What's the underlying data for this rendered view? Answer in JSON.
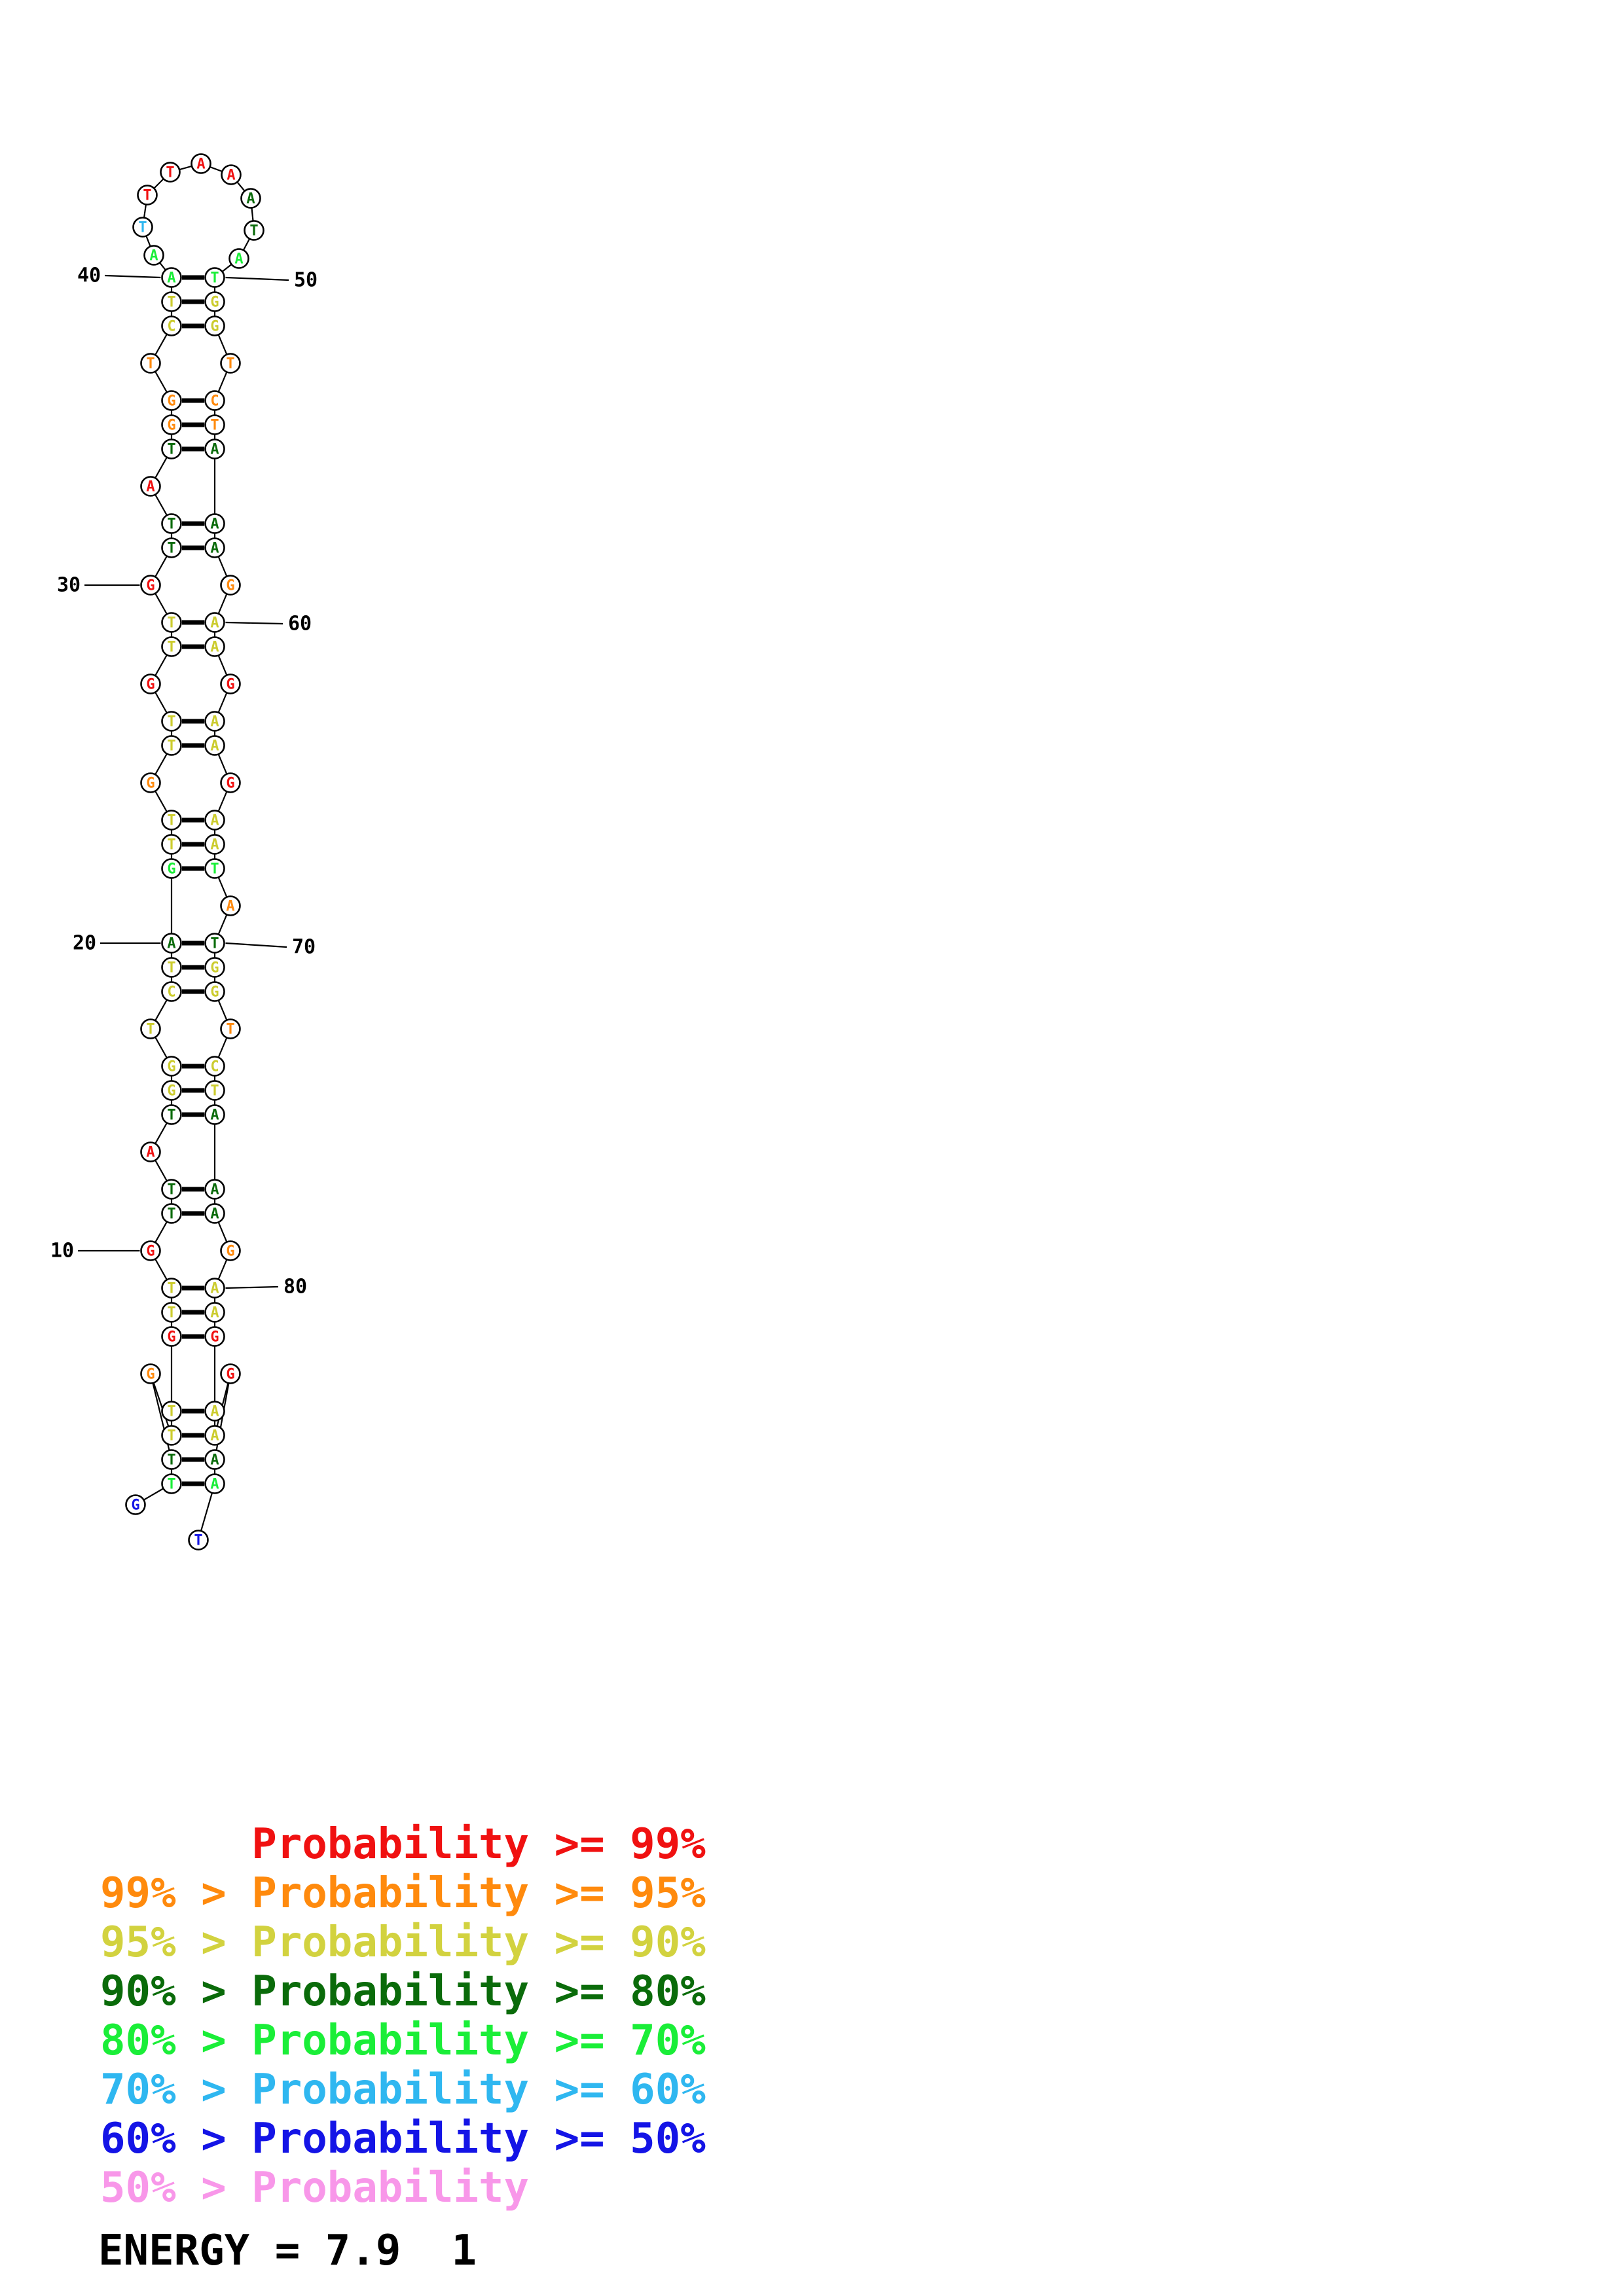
{
  "structure": {
    "palette": {
      "p99": "#F01111",
      "p95": "#FF8A0D",
      "p90": "#CCCC2E",
      "p80": "#0A6B0A",
      "p70": "#1AEE38",
      "p60": "#2FB7F0",
      "p50": "#1414E6"
    },
    "residues": [
      {
        "n": 1,
        "b": "G",
        "p": "p50"
      },
      {
        "n": 2,
        "b": "T",
        "p": "p70"
      },
      {
        "n": 3,
        "b": "T",
        "p": "p80"
      },
      {
        "n": 4,
        "b": "G",
        "p": "p95"
      },
      {
        "n": 5,
        "b": "T",
        "p": "p90"
      },
      {
        "n": 6,
        "b": "T",
        "p": "p90"
      },
      {
        "n": 7,
        "b": "G",
        "p": "p99"
      },
      {
        "n": 8,
        "b": "T",
        "p": "p90"
      },
      {
        "n": 9,
        "b": "T",
        "p": "p90"
      },
      {
        "n": 10,
        "b": "G",
        "p": "p99"
      },
      {
        "n": 11,
        "b": "T",
        "p": "p80"
      },
      {
        "n": 12,
        "b": "T",
        "p": "p80"
      },
      {
        "n": 13,
        "b": "A",
        "p": "p99"
      },
      {
        "n": 14,
        "b": "T",
        "p": "p80"
      },
      {
        "n": 15,
        "b": "G",
        "p": "p90"
      },
      {
        "n": 16,
        "b": "G",
        "p": "p90"
      },
      {
        "n": 17,
        "b": "T",
        "p": "p90"
      },
      {
        "n": 18,
        "b": "C",
        "p": "p90"
      },
      {
        "n": 19,
        "b": "T",
        "p": "p90"
      },
      {
        "n": 20,
        "b": "A",
        "p": "p80"
      },
      {
        "n": 21,
        "b": "G",
        "p": "p70"
      },
      {
        "n": 22,
        "b": "T",
        "p": "p90"
      },
      {
        "n": 23,
        "b": "T",
        "p": "p90"
      },
      {
        "n": 24,
        "b": "G",
        "p": "p95"
      },
      {
        "n": 25,
        "b": "T",
        "p": "p90"
      },
      {
        "n": 26,
        "b": "T",
        "p": "p90"
      },
      {
        "n": 27,
        "b": "G",
        "p": "p99"
      },
      {
        "n": 28,
        "b": "T",
        "p": "p90"
      },
      {
        "n": 29,
        "b": "T",
        "p": "p90"
      },
      {
        "n": 30,
        "b": "G",
        "p": "p99"
      },
      {
        "n": 31,
        "b": "T",
        "p": "p80"
      },
      {
        "n": 32,
        "b": "T",
        "p": "p80"
      },
      {
        "n": 33,
        "b": "A",
        "p": "p99"
      },
      {
        "n": 34,
        "b": "T",
        "p": "p80"
      },
      {
        "n": 35,
        "b": "G",
        "p": "p95"
      },
      {
        "n": 36,
        "b": "G",
        "p": "p95"
      },
      {
        "n": 37,
        "b": "T",
        "p": "p95"
      },
      {
        "n": 38,
        "b": "C",
        "p": "p90"
      },
      {
        "n": 39,
        "b": "T",
        "p": "p90"
      },
      {
        "n": 40,
        "b": "A",
        "p": "p70"
      },
      {
        "n": 41,
        "b": "A",
        "p": "p70"
      },
      {
        "n": 42,
        "b": "T",
        "p": "p60"
      },
      {
        "n": 43,
        "b": "T",
        "p": "p99"
      },
      {
        "n": 44,
        "b": "T",
        "p": "p99"
      },
      {
        "n": 45,
        "b": "A",
        "p": "p99"
      },
      {
        "n": 46,
        "b": "A",
        "p": "p99"
      },
      {
        "n": 47,
        "b": "A",
        "p": "p80"
      },
      {
        "n": 48,
        "b": "T",
        "p": "p80"
      },
      {
        "n": 49,
        "b": "A",
        "p": "p70"
      },
      {
        "n": 50,
        "b": "T",
        "p": "p70"
      },
      {
        "n": 51,
        "b": "G",
        "p": "p90"
      },
      {
        "n": 52,
        "b": "G",
        "p": "p90"
      },
      {
        "n": 53,
        "b": "T",
        "p": "p95"
      },
      {
        "n": 54,
        "b": "C",
        "p": "p95"
      },
      {
        "n": 55,
        "b": "T",
        "p": "p95"
      },
      {
        "n": 56,
        "b": "A",
        "p": "p80"
      },
      {
        "n": 57,
        "b": "A",
        "p": "p80"
      },
      {
        "n": 58,
        "b": "A",
        "p": "p80"
      },
      {
        "n": 59,
        "b": "G",
        "p": "p95"
      },
      {
        "n": 60,
        "b": "A",
        "p": "p90"
      },
      {
        "n": 61,
        "b": "A",
        "p": "p90"
      },
      {
        "n": 62,
        "b": "G",
        "p": "p99"
      },
      {
        "n": 63,
        "b": "A",
        "p": "p90"
      },
      {
        "n": 64,
        "b": "A",
        "p": "p90"
      },
      {
        "n": 65,
        "b": "G",
        "p": "p99"
      },
      {
        "n": 66,
        "b": "A",
        "p": "p90"
      },
      {
        "n": 67,
        "b": "A",
        "p": "p90"
      },
      {
        "n": 68,
        "b": "T",
        "p": "p70"
      },
      {
        "n": 69,
        "b": "A",
        "p": "p95"
      },
      {
        "n": 70,
        "b": "T",
        "p": "p80"
      },
      {
        "n": 71,
        "b": "G",
        "p": "p90"
      },
      {
        "n": 72,
        "b": "G",
        "p": "p90"
      },
      {
        "n": 73,
        "b": "T",
        "p": "p95"
      },
      {
        "n": 74,
        "b": "C",
        "p": "p90"
      },
      {
        "n": 75,
        "b": "T",
        "p": "p90"
      },
      {
        "n": 76,
        "b": "A",
        "p": "p80"
      },
      {
        "n": 77,
        "b": "A",
        "p": "p80"
      },
      {
        "n": 78,
        "b": "A",
        "p": "p80"
      },
      {
        "n": 79,
        "b": "G",
        "p": "p95"
      },
      {
        "n": 80,
        "b": "A",
        "p": "p90"
      },
      {
        "n": 81,
        "b": "A",
        "p": "p90"
      },
      {
        "n": 82,
        "b": "G",
        "p": "p99"
      },
      {
        "n": 83,
        "b": "A",
        "p": "p90"
      },
      {
        "n": 84,
        "b": "A",
        "p": "p90"
      },
      {
        "n": 85,
        "b": "G",
        "p": "p99"
      },
      {
        "n": 86,
        "b": "A",
        "p": "p80"
      },
      {
        "n": 87,
        "b": "A",
        "p": "p70"
      },
      {
        "n": 88,
        "b": "T",
        "p": "p50"
      }
    ],
    "rows": [
      {
        "t": "p",
        "l": 40,
        "r": 50,
        "lab_l": "40",
        "lab_r": "50"
      },
      {
        "t": "p",
        "l": 39,
        "r": 51
      },
      {
        "t": "p",
        "l": 38,
        "r": 52
      },
      {
        "t": "b",
        "l": 37,
        "r": 53
      },
      {
        "t": "p",
        "l": 36,
        "r": 54
      },
      {
        "t": "p",
        "l": 35,
        "r": 55
      },
      {
        "t": "p",
        "l": 34,
        "r": 56
      },
      {
        "t": "b",
        "l": 33
      },
      {
        "t": "p",
        "l": 32,
        "r": 57
      },
      {
        "t": "p",
        "l": 31,
        "r": 58
      },
      {
        "t": "b",
        "l": 30,
        "r": 59,
        "lab_l": "30"
      },
      {
        "t": "p",
        "l": 29,
        "r": 60,
        "lab_r": "60"
      },
      {
        "t": "p",
        "l": 28,
        "r": 61
      },
      {
        "t": "b",
        "l": 27,
        "r": 62
      },
      {
        "t": "p",
        "l": 26,
        "r": 63
      },
      {
        "t": "p",
        "l": 25,
        "r": 64
      },
      {
        "t": "b",
        "l": 24,
        "r": 65
      },
      {
        "t": "p",
        "l": 23,
        "r": 66
      },
      {
        "t": "p",
        "l": 22,
        "r": 67
      },
      {
        "t": "p",
        "l": 21,
        "r": 68
      },
      {
        "t": "b",
        "r": 69
      },
      {
        "t": "p",
        "l": 20,
        "r": 70,
        "lab_l": "20",
        "lab_r": "70"
      },
      {
        "t": "p",
        "l": 19,
        "r": 71
      },
      {
        "t": "p",
        "l": 18,
        "r": 72
      },
      {
        "t": "b",
        "l": 17,
        "r": 73
      },
      {
        "t": "p",
        "l": 16,
        "r": 74
      },
      {
        "t": "p",
        "l": 15,
        "r": 75
      },
      {
        "t": "p",
        "l": 14,
        "r": 76
      },
      {
        "t": "b",
        "l": 13
      },
      {
        "t": "p",
        "l": 12,
        "r": 77
      },
      {
        "t": "p",
        "l": 11,
        "r": 78
      },
      {
        "t": "b",
        "l": 10,
        "r": 79,
        "lab_l": "10"
      },
      {
        "t": "p",
        "l": 9,
        "r": 80,
        "lab_r": "80"
      },
      {
        "t": "p",
        "l": 8,
        "r": 81
      },
      {
        "t": "p",
        "l": 7,
        "r": 82
      },
      {
        "t": "b",
        "l": 4,
        "r": 85
      },
      {
        "t": "p",
        "l": 6,
        "r": 83
      },
      {
        "t": "p",
        "l": 5,
        "r": 84
      },
      {
        "t": "p",
        "l": 3,
        "r": 86
      },
      {
        "t": "p",
        "l": 2,
        "r": 87
      }
    ],
    "row_order_fix": [
      0,
      1,
      2,
      3,
      4,
      5,
      6,
      7,
      8,
      9,
      10,
      11,
      12,
      13,
      14,
      15,
      16,
      17,
      18,
      19,
      20,
      21,
      22,
      23,
      24,
      25,
      26,
      27,
      28,
      29,
      30,
      31,
      32,
      33,
      34,
      36,
      37,
      35,
      38,
      39
    ],
    "loop": [
      41,
      42,
      43,
      44,
      45,
      46,
      47,
      48,
      49
    ],
    "ends": {
      "first": 1,
      "last": 88
    }
  },
  "legend": {
    "rows": [
      {
        "label": "      Probability >= 99%",
        "color": "#F01111"
      },
      {
        "label": "99% > Probability >= 95%",
        "color": "#FF8A0D"
      },
      {
        "label": "95% > Probability >= 90%",
        "color": "#D2D23F"
      },
      {
        "label": "90% > Probability >= 80%",
        "color": "#0A6B0A"
      },
      {
        "label": "80% > Probability >= 70%",
        "color": "#1AEE38"
      },
      {
        "label": "70% > Probability >= 60%",
        "color": "#2FB7F0"
      },
      {
        "label": "60% > Probability >= 50%",
        "color": "#1414E6"
      },
      {
        "label": "50% > Probability",
        "color": "#F897E9"
      }
    ]
  },
  "energy_line": "ENERGY = 7.9  1"
}
